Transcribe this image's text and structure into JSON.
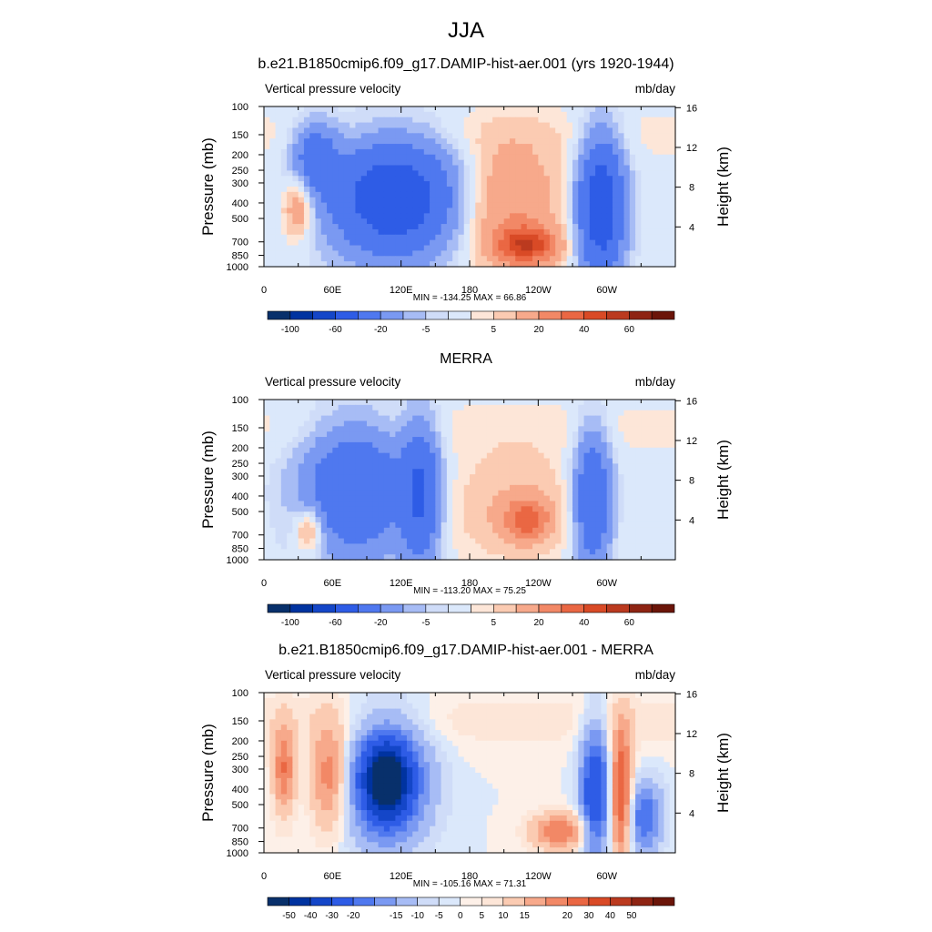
{
  "figure_title": "JJA",
  "chart_data": [
    {
      "type": "heatmap",
      "title": "b.e21.B1850cmip6.f09_g17.DAMIP-hist-aer.001 (yrs 1920-1944)",
      "left_string": "Vertical pressure velocity",
      "right_string": "mb/day",
      "ylabel": "Pressure (mb)",
      "y2label": "Height (km)",
      "x_ticks": [
        "0",
        "60E",
        "120E",
        "180",
        "120W",
        "60W"
      ],
      "y_ticks": [
        100,
        150,
        200,
        250,
        300,
        400,
        500,
        700,
        850,
        1000
      ],
      "y_range": [
        1000,
        100
      ],
      "y2_ticks": [
        4,
        8,
        12,
        16
      ],
      "stats": "MIN = -134.25  MAX =  66.86",
      "min": -134.25,
      "max": 66.86,
      "colorbar_labels": [
        "-100",
        "-60",
        "-20",
        "-5",
        "5",
        "20",
        "40",
        "60"
      ],
      "colorbar_levels": [
        -100,
        -80,
        -60,
        -40,
        -20,
        -10,
        -5,
        -2,
        2,
        5,
        10,
        20,
        30,
        40,
        50,
        60
      ],
      "colors": [
        "#08306b",
        "#0033a0",
        "#1446c8",
        "#2e5ce6",
        "#4f78ef",
        "#7a99f2",
        "#a7bcf5",
        "#cfdcf8",
        "#dbe8fb",
        "#fde6d8",
        "#fbcbb2",
        "#f7a98b",
        "#f28866",
        "#ea6743",
        "#d94a26",
        "#bb3a1f",
        "#8e2413",
        "#6b1509"
      ],
      "features": [
        {
          "lon": [
            30,
            60
          ],
          "p": [
            140,
            300
          ],
          "v": -30
        },
        {
          "lon": [
            72,
            155
          ],
          "p": [
            200,
            700
          ],
          "v": -60
        },
        {
          "lon": [
            180,
            250
          ],
          "p": [
            200,
            900
          ],
          "v": 20
        },
        {
          "lon": [
            210,
            250
          ],
          "p": [
            600,
            900
          ],
          "v": 40
        },
        {
          "lon": [
            280,
            310
          ],
          "p": [
            200,
            900
          ],
          "v": -60
        },
        {
          "lon": [
            20,
            40
          ],
          "p": [
            300,
            600
          ],
          "v": 20
        }
      ]
    },
    {
      "type": "heatmap",
      "title": "MERRA",
      "left_string": "Vertical pressure velocity",
      "right_string": "mb/day",
      "ylabel": "Pressure (mb)",
      "y2label": "Height (km)",
      "x_ticks": [
        "0",
        "60E",
        "120E",
        "180",
        "120W",
        "60W"
      ],
      "y_ticks": [
        100,
        150,
        200,
        250,
        300,
        400,
        500,
        700,
        850,
        1000
      ],
      "y_range": [
        1000,
        100
      ],
      "y2_ticks": [
        4,
        8,
        12,
        16
      ],
      "stats": "MIN = -113.20  MAX =  75.25",
      "min": -113.2,
      "max": 75.25,
      "colorbar_labels": [
        "-100",
        "-60",
        "-20",
        "-5",
        "5",
        "20",
        "40",
        "60"
      ],
      "colorbar_levels": [
        -100,
        -80,
        -60,
        -40,
        -20,
        -10,
        -5,
        -2,
        2,
        5,
        10,
        20,
        30,
        40,
        50,
        60
      ],
      "colors": [
        "#08306b",
        "#0033a0",
        "#1446c8",
        "#2e5ce6",
        "#4f78ef",
        "#7a99f2",
        "#a7bcf5",
        "#cfdcf8",
        "#dbe8fb",
        "#fde6d8",
        "#fbcbb2",
        "#f7a98b",
        "#f28866",
        "#ea6743",
        "#d94a26",
        "#bb3a1f",
        "#8e2413",
        "#6b1509"
      ],
      "features": [
        {
          "lon": [
            45,
            115
          ],
          "p": [
            180,
            750
          ],
          "v": -40
        },
        {
          "lon": [
            125,
            150
          ],
          "p": [
            180,
            850
          ],
          "v": -40
        },
        {
          "lon": [
            170,
            270
          ],
          "p": [
            250,
            900
          ],
          "v": 10
        },
        {
          "lon": [
            215,
            245
          ],
          "p": [
            450,
            700
          ],
          "v": 30
        },
        {
          "lon": [
            275,
            300
          ],
          "p": [
            200,
            900
          ],
          "v": -40
        },
        {
          "lon": [
            30,
            50
          ],
          "p": [
            500,
            850
          ],
          "v": 20
        }
      ]
    },
    {
      "type": "heatmap",
      "title": "b.e21.B1850cmip6.f09_g17.DAMIP-hist-aer.001 - MERRA",
      "left_string": "Vertical pressure velocity",
      "right_string": "mb/day",
      "ylabel": "Pressure (mb)",
      "y2label": "Height (km)",
      "x_ticks": [
        "0",
        "60E",
        "120E",
        "180",
        "120W",
        "60W"
      ],
      "y_ticks": [
        100,
        150,
        200,
        250,
        300,
        400,
        500,
        700,
        850,
        1000
      ],
      "y_range": [
        1000,
        100
      ],
      "y2_ticks": [
        4,
        8,
        12,
        16
      ],
      "stats": "MIN = -105.16  MAX =  71.31",
      "min": -105.16,
      "max": 71.31,
      "colorbar_labels": [
        "-50",
        "-40",
        "-30",
        "-20",
        "-15",
        "-10",
        "-5",
        "0",
        "5",
        "10",
        "15",
        "20",
        "30",
        "40",
        "50"
      ],
      "colorbar_levels": [
        -50,
        -40,
        -30,
        -20,
        -15,
        -10,
        -5,
        -2,
        0,
        2,
        5,
        10,
        15,
        20,
        30,
        40,
        50
      ],
      "colors": [
        "#08306b",
        "#0033a0",
        "#1446c8",
        "#2e5ce6",
        "#4f78ef",
        "#7a99f2",
        "#a7bcf5",
        "#cfdcf8",
        "#dbe8fb",
        "#fdf0e8",
        "#fde6d8",
        "#fbcbb2",
        "#f7a98b",
        "#f28866",
        "#ea6743",
        "#d94a26",
        "#bb3a1f",
        "#8e2413",
        "#6b1509"
      ],
      "features": [
        {
          "lon": [
            10,
            25
          ],
          "p": [
            180,
            500
          ],
          "v": 20
        },
        {
          "lon": [
            45,
            70
          ],
          "p": [
            180,
            600
          ],
          "v": 20
        },
        {
          "lon": [
            80,
            135
          ],
          "p": [
            180,
            700
          ],
          "v": -30
        },
        {
          "lon": [
            95,
            120
          ],
          "p": [
            250,
            500
          ],
          "v": -50
        },
        {
          "lon": [
            240,
            280
          ],
          "p": [
            600,
            900
          ],
          "v": 20
        },
        {
          "lon": [
            280,
            300
          ],
          "p": [
            200,
            900
          ],
          "v": -30
        },
        {
          "lon": [
            305,
            320
          ],
          "p": [
            200,
            900
          ],
          "v": 30
        },
        {
          "lon": [
            320,
            345
          ],
          "p": [
            400,
            900
          ],
          "v": -20
        }
      ]
    }
  ]
}
